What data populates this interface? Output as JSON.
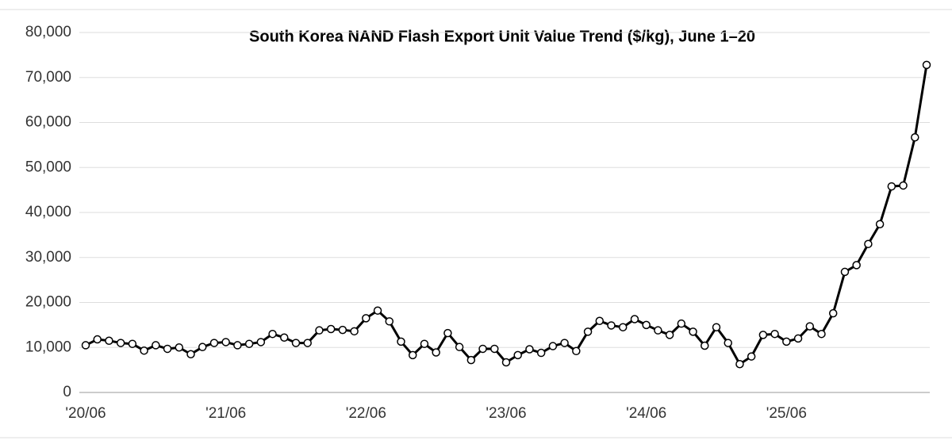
{
  "chart_data": {
    "type": "line",
    "title": "South Korea NAND Flash Export Unit Value Trend ($/kg), June 1–20",
    "categories": [
      "'20/06",
      null,
      null,
      null,
      null,
      null,
      null,
      null,
      null,
      null,
      null,
      null,
      "'21/06",
      null,
      null,
      null,
      null,
      null,
      null,
      null,
      null,
      null,
      null,
      null,
      "'22/06",
      null,
      null,
      null,
      null,
      null,
      null,
      null,
      null,
      null,
      null,
      null,
      "'23/06",
      null,
      null,
      null,
      null,
      null,
      null,
      null,
      null,
      null,
      null,
      null,
      "'24/06",
      null,
      null,
      null,
      null,
      null,
      null,
      null,
      null,
      null,
      null,
      null,
      "'25/06",
      null,
      null,
      null,
      null,
      null,
      null,
      null,
      null,
      null,
      null,
      null,
      null
    ],
    "values": [
      10500,
      11800,
      11500,
      11000,
      10800,
      9300,
      10500,
      9700,
      10000,
      8500,
      10100,
      11000,
      11200,
      10500,
      10800,
      11200,
      13000,
      12200,
      11000,
      11000,
      13800,
      14100,
      13900,
      13600,
      16500,
      18200,
      15800,
      11300,
      8300,
      10800,
      8900,
      13200,
      10100,
      7200,
      9700,
      9700,
      6700,
      8300,
      9600,
      8800,
      10300,
      11000,
      9200,
      13500,
      15900,
      14900,
      14500,
      16300,
      15000,
      13800,
      12800,
      15300,
      13500,
      10400,
      14500,
      11000,
      6300,
      8000,
      12800,
      13000,
      11300,
      12000,
      14700,
      13000,
      17600,
      26800,
      28300,
      33000,
      37400,
      45800,
      46000,
      56700,
      72800
    ],
    "color": "#000000",
    "ylim": [
      0,
      80000
    ],
    "yticks": [
      0,
      {
        "value": 10000,
        "label": "10,000"
      },
      {
        "value": 20000,
        "label": "20,000"
      },
      {
        "value": 30000,
        "label": "30,000"
      },
      {
        "value": 40000,
        "label": "40,000"
      },
      {
        "value": 50000,
        "label": "50,000"
      },
      {
        "value": 60000,
        "label": "60,000"
      },
      {
        "value": 70000,
        "label": "70,000"
      },
      {
        "value": 80000,
        "label": "80,000"
      }
    ],
    "grid": true
  }
}
